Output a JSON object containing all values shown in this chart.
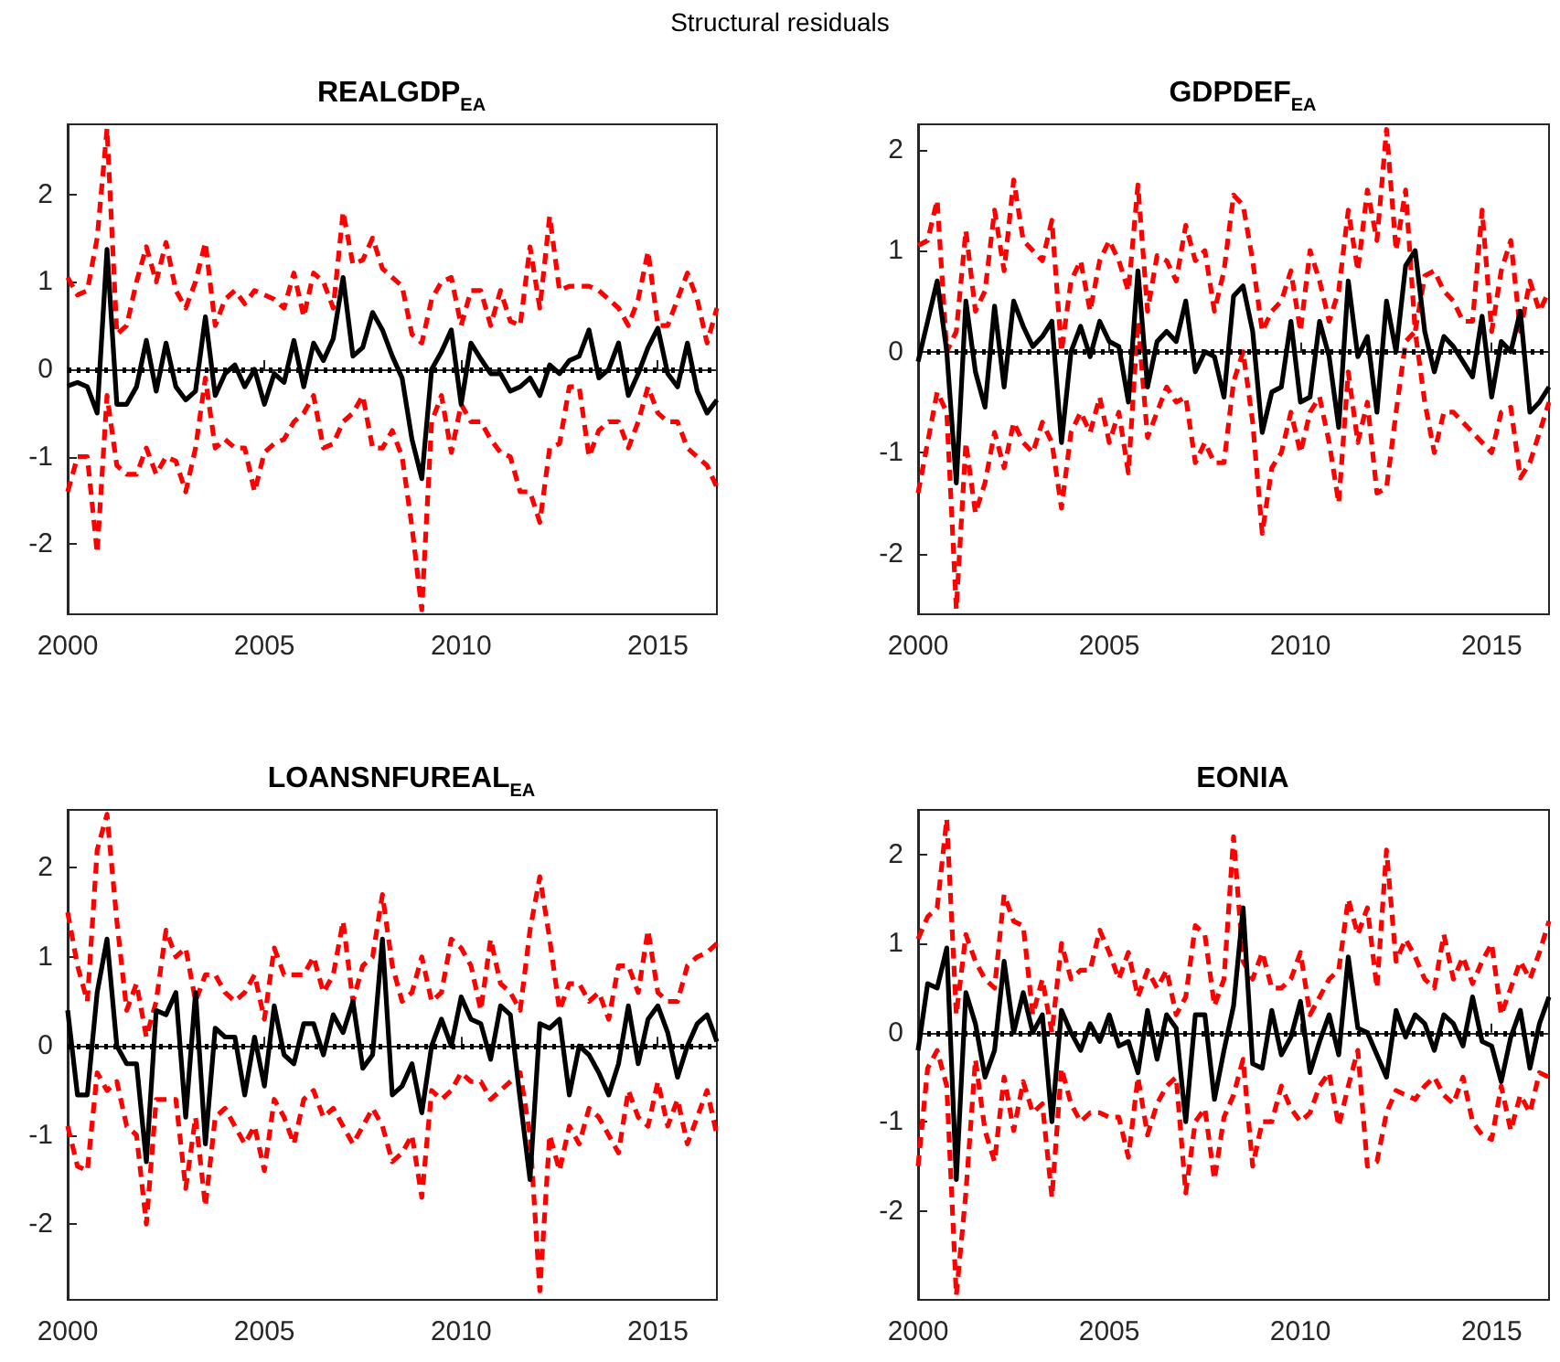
{
  "chart_data": [
    {
      "type": "line",
      "title": "REALGDP$_{EA}$",
      "annotations": [
        "Structural residuals"
      ],
      "x": [
        2000,
        2000.25,
        2000.5,
        2000.75,
        2001,
        2001.25,
        2001.5,
        2001.75,
        2002,
        2002.25,
        2002.5,
        2002.75,
        2003,
        2003.25,
        2003.5,
        2003.75,
        2004,
        2004.25,
        2004.5,
        2004.75,
        2005,
        2005.25,
        2005.5,
        2005.75,
        2006,
        2006.25,
        2006.5,
        2006.75,
        2007,
        2007.25,
        2007.5,
        2007.75,
        2008,
        2008.25,
        2008.5,
        2008.75,
        2009,
        2009.25,
        2009.5,
        2009.75,
        2010,
        2010.25,
        2010.5,
        2010.75,
        2011,
        2011.25,
        2011.5,
        2011.75,
        2012,
        2012.25,
        2012.5,
        2012.75,
        2013,
        2013.25,
        2013.5,
        2013.75,
        2014,
        2014.25,
        2014.5,
        2014.75,
        2015,
        2015.25,
        2015.5,
        2015.75,
        2016,
        2016.25,
        2016.5
      ],
      "series": [
        {
          "color": "#ff0000",
          "line_style": "dashed",
          "values": [
            1.05,
            0.85,
            0.9,
            1.5,
            2.75,
            0.4,
            0.5,
            1.0,
            1.4,
            1.0,
            1.45,
            0.9,
            0.7,
            1.0,
            1.45,
            0.5,
            0.8,
            0.9,
            0.75,
            0.9,
            0.85,
            0.8,
            0.7,
            1.1,
            0.6,
            1.1,
            1.0,
            0.7,
            1.8,
            1.2,
            1.25,
            1.5,
            1.15,
            1.05,
            0.95,
            0.4,
            0.3,
            0.8,
            1.0,
            1.05,
            0.5,
            0.9,
            0.9,
            0.5,
            0.9,
            0.55,
            0.5,
            1.4,
            0.7,
            1.75,
            0.9,
            0.95,
            0.95,
            0.95,
            0.9,
            0.8,
            0.7,
            0.5,
            0.8,
            1.35,
            0.5,
            0.5,
            0.8,
            1.1,
            0.8,
            0.3,
            0.7
          ]
        },
        {
          "color": "#ff0000",
          "line_style": "dashed",
          "values": [
            -1.4,
            -1.0,
            -1.0,
            -2.1,
            -0.3,
            -1.1,
            -1.2,
            -1.2,
            -0.9,
            -1.2,
            -1.0,
            -1.05,
            -1.4,
            -0.9,
            -0.1,
            -0.9,
            -0.8,
            -0.9,
            -0.9,
            -1.4,
            -0.95,
            -0.85,
            -0.8,
            -0.6,
            -0.5,
            -0.3,
            -0.9,
            -0.85,
            -0.6,
            -0.5,
            -0.3,
            -0.9,
            -0.9,
            -0.7,
            -1.0,
            -1.8,
            -2.75,
            -0.6,
            -0.3,
            -0.95,
            -0.4,
            -0.6,
            -0.6,
            -0.8,
            -0.95,
            -1.0,
            -1.4,
            -1.4,
            -1.75,
            -0.9,
            -0.85,
            -0.2,
            -0.2,
            -1.0,
            -0.7,
            -0.6,
            -0.6,
            -0.9,
            -0.6,
            -0.2,
            -0.5,
            -0.6,
            -0.6,
            -0.9,
            -1.0,
            -1.1,
            -1.35
          ]
        },
        {
          "color": "#000000",
          "line_style": "solid",
          "values": [
            -0.19,
            -0.15,
            -0.2,
            -0.5,
            1.37,
            -0.4,
            -0.4,
            -0.2,
            0.33,
            -0.25,
            0.3,
            -0.2,
            -0.35,
            -0.25,
            0.6,
            -0.3,
            -0.05,
            0.05,
            -0.2,
            0,
            -0.4,
            -0.05,
            -0.15,
            0.33,
            -0.2,
            0.3,
            0.1,
            0.35,
            1.05,
            0.15,
            0.25,
            0.65,
            0.45,
            0.15,
            -0.1,
            -0.8,
            -1.25,
            0,
            0.2,
            0.45,
            -0.4,
            0.3,
            0.12,
            -0.05,
            -0.05,
            -0.25,
            -0.2,
            -0.1,
            -0.3,
            0.05,
            -0.05,
            0.1,
            0.15,
            0.45,
            -0.1,
            0,
            0.3,
            -0.3,
            -0.05,
            0.25,
            0.47,
            -0.05,
            -0.2,
            0.3,
            -0.25,
            -0.5,
            -0.35
          ]
        }
      ],
      "xlim": [
        2000,
        2016.5
      ],
      "xticks": [
        2000,
        2005,
        2010,
        2015
      ],
      "ylim": [
        -2.8,
        2.8
      ],
      "yticks": [
        -2,
        -1,
        0,
        1,
        2
      ],
      "grid": false,
      "marker": "none",
      "ref_lines": [
        {
          "axis": "y",
          "value": 0,
          "color": "#000000",
          "line_style": "dotted"
        }
      ]
    },
    {
      "type": "line",
      "title": "GDPDEF$_{EA}$",
      "x": [
        2000,
        2000.25,
        2000.5,
        2000.75,
        2001,
        2001.25,
        2001.5,
        2001.75,
        2002,
        2002.25,
        2002.5,
        2002.75,
        2003,
        2003.25,
        2003.5,
        2003.75,
        2004,
        2004.25,
        2004.5,
        2004.75,
        2005,
        2005.25,
        2005.5,
        2005.75,
        2006,
        2006.25,
        2006.5,
        2006.75,
        2007,
        2007.25,
        2007.5,
        2007.75,
        2008,
        2008.25,
        2008.5,
        2008.75,
        2009,
        2009.25,
        2009.5,
        2009.75,
        2010,
        2010.25,
        2010.5,
        2010.75,
        2011,
        2011.25,
        2011.5,
        2011.75,
        2012,
        2012.25,
        2012.5,
        2012.75,
        2013,
        2013.25,
        2013.5,
        2013.75,
        2014,
        2014.25,
        2014.5,
        2014.75,
        2015,
        2015.25,
        2015.5,
        2015.75,
        2016,
        2016.25,
        2016.5
      ],
      "series": [
        {
          "color": "#ff0000",
          "line_style": "dashed",
          "values": [
            1.05,
            1.1,
            1.5,
            0.0,
            0.2,
            1.2,
            0.4,
            0.6,
            1.4,
            0.8,
            1.7,
            1.1,
            1.0,
            0.9,
            1.3,
            0.0,
            0.7,
            0.9,
            0.4,
            0.9,
            1.1,
            0.9,
            0.6,
            1.65,
            0.4,
            0.95,
            0.9,
            0.7,
            1.25,
            0.9,
            1.0,
            0.4,
            0.8,
            1.55,
            1.45,
            0.9,
            0.2,
            0.4,
            0.5,
            0.8,
            0.2,
            1.0,
            0.7,
            0.3,
            0.6,
            1.4,
            0.8,
            1.6,
            1.1,
            2.2,
            1.0,
            1.6,
            0.2,
            0.75,
            0.8,
            0.6,
            0.5,
            0.3,
            0.3,
            1.4,
            0.2,
            0.8,
            1.1,
            0.2,
            0.7,
            0.4,
            0.6
          ]
        },
        {
          "color": "#ff0000",
          "line_style": "dashed",
          "values": [
            -1.4,
            -0.9,
            -0.4,
            -0.6,
            -2.55,
            -0.9,
            -1.6,
            -1.3,
            -0.8,
            -1.15,
            -0.7,
            -0.9,
            -1.0,
            -0.7,
            -0.9,
            -1.55,
            -0.8,
            -0.6,
            -0.8,
            -0.45,
            -0.9,
            -0.6,
            -1.2,
            0.3,
            -0.85,
            -0.6,
            -0.35,
            -0.5,
            -0.45,
            -1.1,
            -0.9,
            -1.1,
            -1.1,
            -0.3,
            0.0,
            -0.7,
            -1.8,
            -1.15,
            -1.0,
            -0.6,
            -1.0,
            -0.6,
            -0.45,
            -0.9,
            -1.5,
            -0.2,
            -0.9,
            -0.5,
            -1.4,
            -1.35,
            -0.6,
            0.1,
            0.2,
            -0.5,
            -1.0,
            -0.6,
            -0.6,
            -0.7,
            -0.8,
            -0.9,
            -1.0,
            -0.6,
            -0.55,
            -1.25,
            -1.1,
            -0.8,
            -0.5
          ]
        },
        {
          "color": "#000000",
          "line_style": "solid",
          "values": [
            -0.1,
            0.3,
            0.7,
            0.0,
            -1.3,
            0.5,
            -0.2,
            -0.55,
            0.45,
            -0.35,
            0.5,
            0.25,
            0.05,
            0.15,
            0.3,
            -0.9,
            0.0,
            0.25,
            -0.05,
            0.3,
            0.1,
            0.05,
            -0.5,
            0.8,
            -0.35,
            0.1,
            0.2,
            0.1,
            0.5,
            -0.2,
            0.0,
            -0.05,
            -0.45,
            0.55,
            0.65,
            0.2,
            -0.8,
            -0.4,
            -0.35,
            0.3,
            -0.5,
            -0.45,
            0.3,
            -0.05,
            -0.75,
            0.7,
            -0.05,
            0.15,
            -0.6,
            0.5,
            0.0,
            0.85,
            1.0,
            0.2,
            -0.2,
            0.15,
            0.05,
            -0.1,
            -0.25,
            0.35,
            -0.45,
            0.1,
            0.0,
            0.4,
            -0.6,
            -0.5,
            -0.35
          ]
        }
      ],
      "xlim": [
        2000,
        2016.5
      ],
      "xticks": [
        2000,
        2005,
        2010,
        2015
      ],
      "ylim": [
        -2.6,
        2.25
      ],
      "yticks": [
        -2,
        -1,
        0,
        1,
        2
      ],
      "grid": false,
      "marker": "none",
      "ref_lines": [
        {
          "axis": "y",
          "value": 0,
          "color": "#000000",
          "line_style": "dotted"
        }
      ]
    },
    {
      "type": "line",
      "title": "LOANSNFUREAL$_{EA}$",
      "x": [
        2000,
        2000.25,
        2000.5,
        2000.75,
        2001,
        2001.25,
        2001.5,
        2001.75,
        2002,
        2002.25,
        2002.5,
        2002.75,
        2003,
        2003.25,
        2003.5,
        2003.75,
        2004,
        2004.25,
        2004.5,
        2004.75,
        2005,
        2005.25,
        2005.5,
        2005.75,
        2006,
        2006.25,
        2006.5,
        2006.75,
        2007,
        2007.25,
        2007.5,
        2007.75,
        2008,
        2008.25,
        2008.5,
        2008.75,
        2009,
        2009.25,
        2009.5,
        2009.75,
        2010,
        2010.25,
        2010.5,
        2010.75,
        2011,
        2011.25,
        2011.5,
        2011.75,
        2012,
        2012.25,
        2012.5,
        2012.75,
        2013,
        2013.25,
        2013.5,
        2013.75,
        2014,
        2014.25,
        2014.5,
        2014.75,
        2015,
        2015.25,
        2015.5,
        2015.75,
        2016,
        2016.25,
        2016.5
      ],
      "series": [
        {
          "color": "#ff0000",
          "line_style": "dashed",
          "values": [
            1.5,
            0.9,
            0.5,
            2.2,
            2.6,
            1.4,
            0.4,
            0.7,
            0.1,
            0.5,
            1.3,
            1.0,
            1.1,
            0.5,
            0.8,
            0.8,
            0.6,
            0.5,
            0.6,
            0.8,
            0.3,
            1.1,
            0.8,
            0.8,
            0.8,
            1.0,
            0.6,
            0.8,
            1.4,
            0.5,
            0.9,
            1.0,
            1.7,
            0.9,
            0.5,
            0.6,
            1.0,
            0.5,
            0.6,
            1.2,
            1.1,
            0.9,
            0.4,
            1.2,
            0.7,
            0.6,
            0.4,
            1.3,
            1.9,
            1.2,
            0.4,
            0.7,
            0.7,
            0.5,
            0.6,
            0.3,
            0.9,
            0.9,
            0.6,
            1.3,
            0.6,
            0.5,
            0.5,
            0.9,
            1.0,
            1.05,
            1.15
          ]
        },
        {
          "color": "#ff0000",
          "line_style": "dashed",
          "values": [
            -0.9,
            -1.35,
            -1.4,
            -0.3,
            -0.5,
            -0.4,
            -0.9,
            -1.0,
            -2.0,
            -0.6,
            -0.6,
            -0.6,
            -1.6,
            -0.8,
            -1.8,
            -0.8,
            -0.7,
            -0.9,
            -1.1,
            -0.9,
            -1.4,
            -0.6,
            -0.8,
            -1.1,
            -0.6,
            -0.5,
            -0.8,
            -0.7,
            -0.9,
            -1.1,
            -0.9,
            -0.7,
            -0.9,
            -1.3,
            -1.2,
            -1.0,
            -1.7,
            -0.5,
            -0.6,
            -0.5,
            -0.3,
            -0.4,
            -0.4,
            -0.6,
            -0.5,
            -0.4,
            -0.3,
            -1.0,
            -2.75,
            -1.0,
            -1.4,
            -0.9,
            -1.1,
            -0.7,
            -0.8,
            -1.0,
            -1.2,
            -0.5,
            -0.8,
            -0.9,
            -0.4,
            -0.9,
            -0.6,
            -1.1,
            -0.8,
            -0.5,
            -1.0
          ]
        },
        {
          "color": "#000000",
          "line_style": "solid",
          "values": [
            0.4,
            -0.55,
            -0.55,
            0.6,
            1.2,
            0.0,
            -0.2,
            -0.2,
            -1.3,
            0.4,
            0.35,
            0.6,
            -0.8,
            0.6,
            -1.1,
            0.2,
            0.1,
            0.1,
            -0.55,
            0.1,
            -0.45,
            0.45,
            -0.1,
            -0.2,
            0.25,
            0.25,
            -0.1,
            0.35,
            0.15,
            0.5,
            -0.25,
            -0.1,
            1.2,
            -0.55,
            -0.45,
            -0.2,
            -0.75,
            0.0,
            0.3,
            0.0,
            0.55,
            0.3,
            0.25,
            -0.15,
            0.45,
            0.35,
            -0.6,
            -1.5,
            0.25,
            0.2,
            0.3,
            -0.55,
            0.0,
            -0.1,
            -0.3,
            -0.55,
            -0.2,
            0.45,
            -0.2,
            0.3,
            0.45,
            0.15,
            -0.35,
            0.0,
            0.25,
            0.35,
            0.05
          ]
        }
      ],
      "xlim": [
        2000,
        2016.5
      ],
      "xticks": [
        2000,
        2005,
        2010,
        2015
      ],
      "ylim": [
        -2.85,
        2.65
      ],
      "yticks": [
        -2,
        -1,
        0,
        1,
        2
      ],
      "grid": false,
      "marker": "none",
      "ref_lines": [
        {
          "axis": "y",
          "value": 0,
          "color": "#000000",
          "line_style": "dotted"
        }
      ]
    },
    {
      "type": "line",
      "title": "EONIA",
      "x": [
        2000,
        2000.25,
        2000.5,
        2000.75,
        2001,
        2001.25,
        2001.5,
        2001.75,
        2002,
        2002.25,
        2002.5,
        2002.75,
        2003,
        2003.25,
        2003.5,
        2003.75,
        2004,
        2004.25,
        2004.5,
        2004.75,
        2005,
        2005.25,
        2005.5,
        2005.75,
        2006,
        2006.25,
        2006.5,
        2006.75,
        2007,
        2007.25,
        2007.5,
        2007.75,
        2008,
        2008.25,
        2008.5,
        2008.75,
        2009,
        2009.25,
        2009.5,
        2009.75,
        2010,
        2010.25,
        2010.5,
        2010.75,
        2011,
        2011.25,
        2011.5,
        2011.75,
        2012,
        2012.25,
        2012.5,
        2012.75,
        2013,
        2013.25,
        2013.5,
        2013.75,
        2014,
        2014.25,
        2014.5,
        2014.75,
        2015,
        2015.25,
        2015.5,
        2015.75,
        2016,
        2016.25,
        2016.5
      ],
      "series": [
        {
          "color": "#ff0000",
          "line_style": "dashed",
          "values": [
            1.05,
            1.3,
            1.4,
            2.4,
            0.2,
            1.1,
            0.8,
            0.6,
            0.5,
            1.55,
            1.25,
            1.2,
            0.2,
            0.6,
            0.0,
            1.0,
            0.6,
            0.7,
            0.7,
            1.15,
            0.9,
            0.6,
            0.9,
            0.4,
            0.7,
            0.5,
            0.7,
            0.2,
            0.4,
            1.2,
            1.1,
            0.3,
            0.6,
            2.2,
            0.8,
            0.6,
            0.9,
            0.5,
            0.5,
            0.6,
            0.9,
            0.2,
            0.4,
            0.6,
            0.7,
            1.5,
            1.1,
            1.4,
            0.5,
            2.05,
            0.8,
            1.05,
            0.85,
            0.6,
            0.5,
            1.1,
            0.6,
            0.85,
            0.55,
            0.8,
            1.0,
            0.2,
            0.5,
            0.8,
            0.6,
            0.9,
            1.25
          ]
        },
        {
          "color": "#ff0000",
          "line_style": "dashed",
          "values": [
            -1.5,
            -0.4,
            -0.2,
            -0.6,
            -2.95,
            -1.8,
            -0.3,
            -1.1,
            -1.45,
            -0.5,
            -1.1,
            -0.55,
            -0.9,
            -0.8,
            -1.85,
            -0.4,
            -0.8,
            -1.0,
            -0.9,
            -0.9,
            -0.95,
            -0.95,
            -1.4,
            -0.5,
            -1.15,
            -0.8,
            -0.6,
            -0.5,
            -1.8,
            -1.0,
            -0.85,
            -1.65,
            -0.95,
            -0.7,
            -0.3,
            -1.5,
            -1.0,
            -1.0,
            -0.6,
            -0.85,
            -1.0,
            -0.9,
            -0.6,
            -0.45,
            -1.05,
            -0.6,
            -0.2,
            -1.5,
            -1.45,
            -0.9,
            -0.65,
            -0.7,
            -0.75,
            -0.6,
            -0.5,
            -0.7,
            -0.8,
            -0.5,
            -1.0,
            -1.15,
            -1.2,
            -0.6,
            -1.1,
            -0.7,
            -0.9,
            -0.45,
            -0.5
          ]
        },
        {
          "color": "#000000",
          "line_style": "solid",
          "values": [
            -0.2,
            0.55,
            0.5,
            0.95,
            -1.65,
            0.45,
            0.1,
            -0.5,
            -0.2,
            0.8,
            0.0,
            0.45,
            0.0,
            0.2,
            -1.0,
            0.25,
            0.0,
            -0.2,
            0.1,
            -0.1,
            0.2,
            -0.15,
            -0.1,
            -0.45,
            0.25,
            -0.3,
            0.2,
            0.05,
            -1.0,
            0.2,
            0.2,
            -0.75,
            -0.2,
            0.3,
            1.4,
            -0.35,
            -0.4,
            0.25,
            -0.25,
            -0.05,
            0.35,
            -0.45,
            -0.1,
            0.2,
            -0.25,
            0.85,
            0.05,
            0.0,
            -0.25,
            -0.5,
            0.25,
            -0.05,
            0.2,
            0.1,
            -0.2,
            0.2,
            0.1,
            -0.15,
            0.4,
            -0.1,
            -0.15,
            -0.55,
            -0.05,
            0.25,
            -0.4,
            0.1,
            0.4
          ]
        }
      ],
      "xlim": [
        2000,
        2016.5
      ],
      "xticks": [
        2000,
        2005,
        2010,
        2015
      ],
      "ylim": [
        -3,
        2.5
      ],
      "yticks": [
        -2,
        -1,
        0,
        1,
        2
      ],
      "grid": false,
      "marker": "none",
      "ref_lines": [
        {
          "axis": "y",
          "value": 0,
          "color": "#000000",
          "line_style": "dotted"
        }
      ]
    }
  ]
}
